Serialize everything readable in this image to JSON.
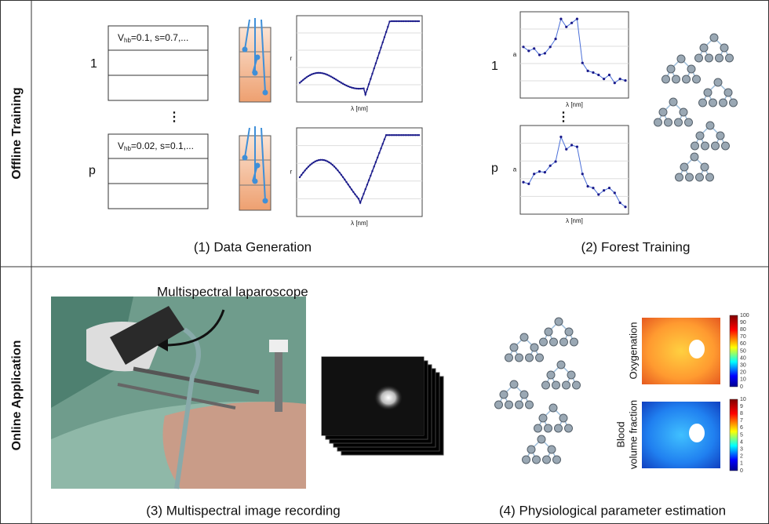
{
  "sections": {
    "offline": "Offline Training",
    "online": "Online Application"
  },
  "data_generation": {
    "caption": "(1)  Data Generation",
    "row_labels": [
      "1",
      "⋮",
      "p"
    ],
    "tables": [
      {
        "var": "V",
        "sub": "hb",
        "rest": "=0.1, s=0.7,..."
      },
      {
        "var": "V",
        "sub": "hb",
        "rest": "=0.02, s=0.1,..."
      }
    ],
    "plot_x_label": "λ [nm]",
    "plot_y_label": "r"
  },
  "forest_training": {
    "caption": "(2) Forest Training",
    "row_labels": [
      "1",
      "⋮",
      "p"
    ],
    "plot_x_label": "λ [nm]",
    "plot_y_label": "a"
  },
  "recording": {
    "caption": "(3) Multispectral image recording",
    "annotation": "Multispectral laparoscope"
  },
  "estimation": {
    "caption": "(4) Physiological parameter estimation",
    "maps": [
      {
        "label_lines": [
          "Oxygenation"
        ],
        "colorbar_ticks": [
          "100",
          "90",
          "80",
          "70",
          "60",
          "50",
          "40",
          "30",
          "20",
          "10",
          "0"
        ]
      },
      {
        "label_lines": [
          "Blood",
          "volume fraction"
        ],
        "colorbar_ticks": [
          "10",
          "9",
          "8",
          "7",
          "6",
          "5",
          "4",
          "3",
          "2",
          "1",
          "0"
        ]
      }
    ]
  }
}
